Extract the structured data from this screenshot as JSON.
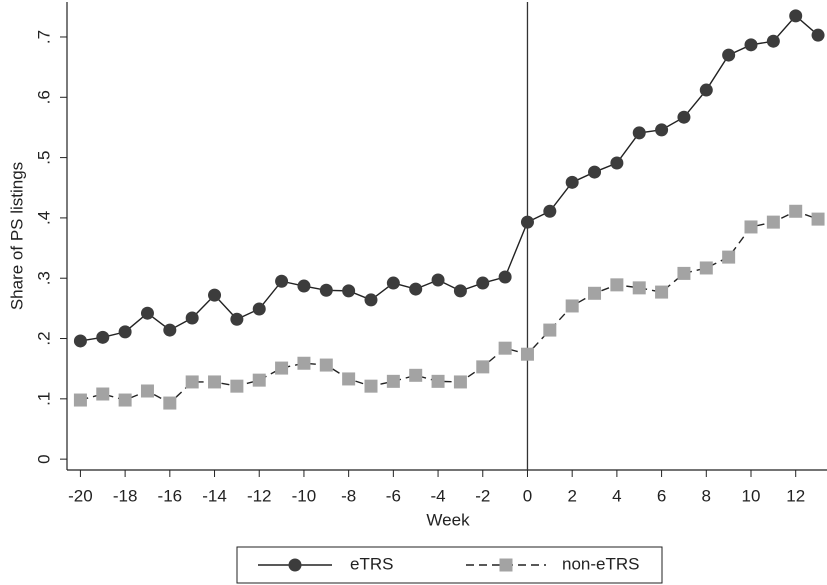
{
  "chart_data": {
    "type": "line",
    "x_label": "Week",
    "y_label": "Share of PS listings",
    "x": [
      -20,
      -19,
      -18,
      -17,
      -16,
      -15,
      -14,
      -13,
      -12,
      -11,
      -10,
      -9,
      -8,
      -7,
      -6,
      -5,
      -4,
      -3,
      -2,
      -1,
      0,
      1,
      2,
      3,
      4,
      5,
      6,
      7,
      8,
      9,
      10,
      11,
      12,
      13
    ],
    "series": [
      {
        "name": "eTRS",
        "color": "#3c3c3c",
        "marker": "circle",
        "dash": false,
        "values": [
          0.196,
          0.202,
          0.211,
          0.242,
          0.214,
          0.234,
          0.272,
          0.232,
          0.249,
          0.295,
          0.287,
          0.28,
          0.279,
          0.264,
          0.292,
          0.282,
          0.297,
          0.279,
          0.292,
          0.302,
          0.393,
          0.411,
          0.459,
          0.476,
          0.491,
          0.541,
          0.546,
          0.567,
          0.612,
          0.67,
          0.687,
          0.693,
          0.735,
          0.703
        ]
      },
      {
        "name": "non-eTRS",
        "color": "#a3a3a3",
        "marker": "square",
        "dash": true,
        "values": [
          0.098,
          0.108,
          0.098,
          0.113,
          0.093,
          0.128,
          0.128,
          0.121,
          0.131,
          0.151,
          0.159,
          0.156,
          0.133,
          0.121,
          0.129,
          0.139,
          0.129,
          0.128,
          0.153,
          0.184,
          0.174,
          0.214,
          0.254,
          0.275,
          0.289,
          0.284,
          0.277,
          0.308,
          0.317,
          0.335,
          0.385,
          0.393,
          0.411,
          0.398
        ]
      }
    ],
    "xlim": [
      -20.6,
      13.4
    ],
    "ylim": [
      -0.018,
      0.758
    ],
    "xticks": [
      -20,
      -18,
      -16,
      -14,
      -12,
      -10,
      -8,
      -6,
      -4,
      -2,
      0,
      2,
      4,
      6,
      8,
      10,
      12
    ],
    "yticks": [
      0,
      {
        "value": 0.1,
        "label": ".1"
      },
      {
        "value": 0.2,
        "label": ".2"
      },
      {
        "value": 0.3,
        "label": ".3"
      },
      {
        "value": 0.4,
        "label": ".4"
      },
      {
        "value": 0.5,
        "label": ".5"
      },
      {
        "value": 0.6,
        "label": ".6"
      },
      {
        "value": 0.7,
        "label": ".7"
      }
    ],
    "vline": 0,
    "legend": "bottom"
  }
}
